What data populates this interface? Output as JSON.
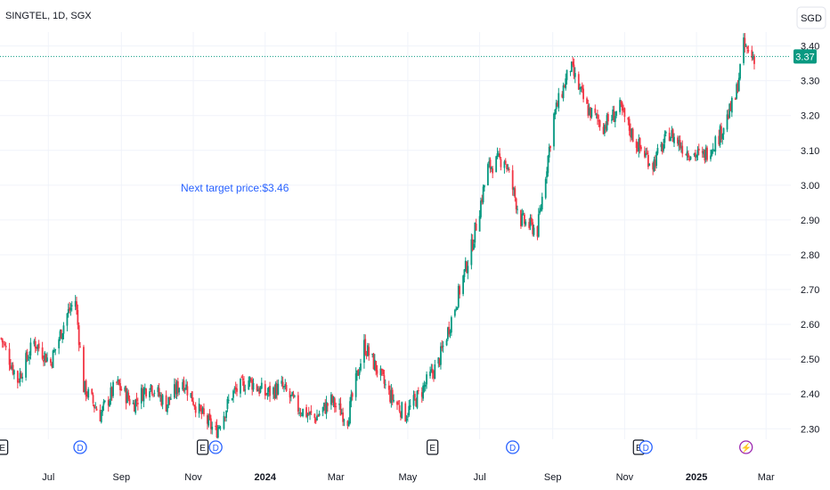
{
  "header": {
    "symbol_line": "SINGTEL, 1D, SGX"
  },
  "currency_badge": "SGD",
  "annotation": {
    "text": "Next target price:$3.46"
  },
  "last_price_label": "3.37",
  "colors": {
    "up": "#089981",
    "down": "#f23645",
    "grid": "#f0f3fa",
    "annotation": "#2962ff",
    "price_tag": "#089981",
    "event_blue": "#2962ff",
    "event_purple": "#9c27b0"
  },
  "events": [
    {
      "type": "earnings",
      "label": "E",
      "date": "2023-05-23"
    },
    {
      "type": "dividend",
      "label": "D",
      "date": "2023-07-28"
    },
    {
      "type": "earnings",
      "label": "E",
      "date": "2023-11-09"
    },
    {
      "type": "dividend",
      "label": "D",
      "date": "2023-11-20"
    },
    {
      "type": "earnings",
      "label": "E",
      "date": "2024-05-22"
    },
    {
      "type": "dividend",
      "label": "D",
      "date": "2024-07-29"
    },
    {
      "type": "earnings",
      "label": "E",
      "date": "2024-11-13"
    },
    {
      "type": "dividend",
      "label": "D",
      "date": "2024-11-19"
    },
    {
      "type": "split",
      "label": "⚡",
      "date": "2025-02-12"
    }
  ],
  "chart_data": {
    "type": "candlestick",
    "title": "SINGTEL, 1D, SGX",
    "currency": "SGD",
    "xlabel": "",
    "ylabel": "",
    "x_ticks": [
      "Jul",
      "Sep",
      "Nov",
      "2024",
      "Mar",
      "May",
      "Jul",
      "Sep",
      "Nov",
      "2025",
      "Mar"
    ],
    "x_tick_dates": [
      "2023-07-01",
      "2023-09-01",
      "2023-11-01",
      "2024-01-01",
      "2024-03-01",
      "2024-05-01",
      "2024-07-01",
      "2024-09-01",
      "2024-11-01",
      "2025-01-01",
      "2025-03-01"
    ],
    "y_ticks": [
      2.3,
      2.4,
      2.5,
      2.6,
      2.7,
      2.8,
      2.9,
      3.0,
      3.1,
      3.2,
      3.3,
      3.4
    ],
    "ylim": [
      2.27,
      3.44
    ],
    "xlim": [
      "2023-05-21",
      "2025-03-22"
    ],
    "last_price": 3.37,
    "grid": true,
    "closes": {
      "dates": [
        "2023-05-22",
        "2023-06-05",
        "2023-06-19",
        "2023-07-03",
        "2023-07-17",
        "2023-07-24",
        "2023-07-31",
        "2023-08-14",
        "2023-08-28",
        "2023-09-11",
        "2023-09-25",
        "2023-10-09",
        "2023-10-23",
        "2023-11-06",
        "2023-11-20",
        "2023-12-04",
        "2023-12-18",
        "2024-01-01",
        "2024-01-15",
        "2024-01-29",
        "2024-02-12",
        "2024-02-26",
        "2024-03-11",
        "2024-03-25",
        "2024-04-08",
        "2024-04-15",
        "2024-04-29",
        "2024-05-13",
        "2024-05-27",
        "2024-06-10",
        "2024-06-24",
        "2024-07-08",
        "2024-07-22",
        "2024-08-05",
        "2024-08-19",
        "2024-09-02",
        "2024-09-16",
        "2024-09-30",
        "2024-10-14",
        "2024-10-28",
        "2024-11-11",
        "2024-11-25",
        "2024-12-09",
        "2024-12-23",
        "2025-01-06",
        "2025-01-20",
        "2025-02-03",
        "2025-02-10",
        "2025-02-17"
      ],
      "values": [
        2.56,
        2.44,
        2.55,
        2.49,
        2.63,
        2.67,
        2.42,
        2.34,
        2.43,
        2.37,
        2.43,
        2.37,
        2.44,
        2.35,
        2.29,
        2.4,
        2.44,
        2.4,
        2.42,
        2.36,
        2.33,
        2.38,
        2.33,
        2.54,
        2.45,
        2.4,
        2.34,
        2.41,
        2.49,
        2.65,
        2.82,
        3.05,
        3.08,
        2.9,
        2.87,
        3.2,
        3.34,
        3.22,
        3.17,
        3.22,
        3.12,
        3.06,
        3.15,
        3.1,
        3.08,
        3.14,
        3.25,
        3.4,
        3.37
      ]
    },
    "extremes": {
      "high": 3.41,
      "low": 2.26
    }
  }
}
